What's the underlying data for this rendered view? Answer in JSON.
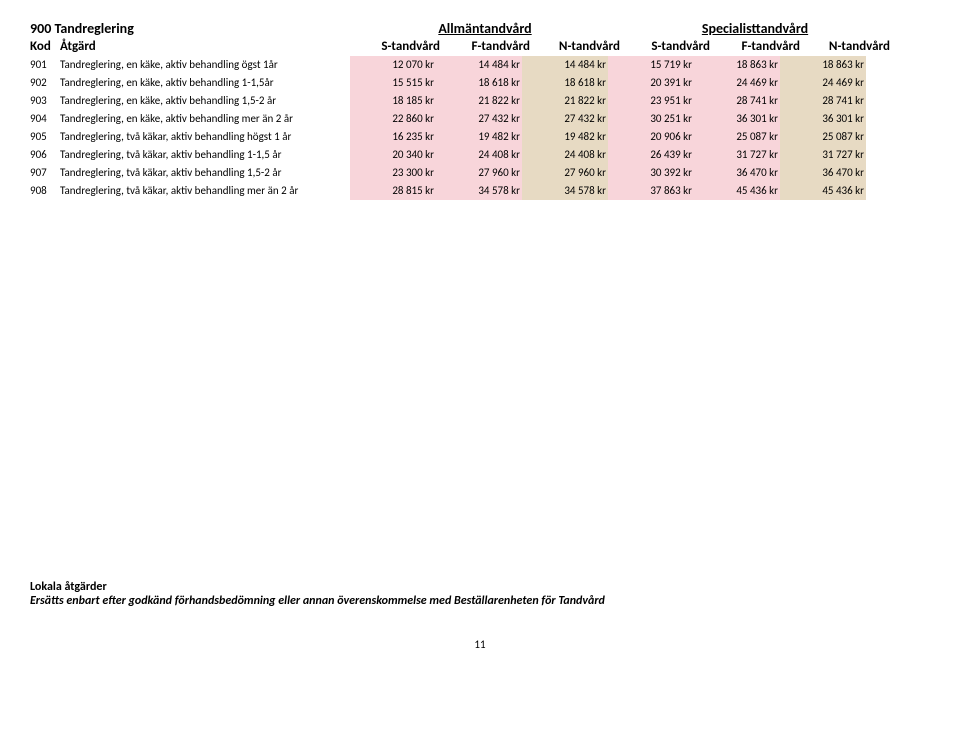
{
  "header": {
    "category_code": "900",
    "category_name": "Tandreglering",
    "group1": "Allmäntandvård",
    "group2": "Specialisttandvård",
    "kod_label": "Kod",
    "atgard_label": "Åtgärd",
    "cols": [
      "S-tandvård",
      "F-tandvård",
      "N-tandvård",
      "S-tandvård",
      "F-tandvård",
      "N-tandvård"
    ]
  },
  "rows": [
    {
      "kod": "901",
      "atgard": "Tandreglering, en käke, aktiv behandling ögst 1år",
      "v": [
        "12 070 kr",
        "14 484 kr",
        "14 484 kr",
        "15 719 kr",
        "18 863 kr",
        "18 863 kr"
      ]
    },
    {
      "kod": "902",
      "atgard": "Tandreglering, en käke, aktiv behandling 1-1,5år",
      "v": [
        "15 515 kr",
        "18 618 kr",
        "18 618 kr",
        "20 391 kr",
        "24 469 kr",
        "24 469 kr"
      ]
    },
    {
      "kod": "903",
      "atgard": "Tandreglering, en käke, aktiv behandling 1,5-2 år",
      "v": [
        "18 185 kr",
        "21 822 kr",
        "21 822 kr",
        "23 951 kr",
        "28 741 kr",
        "28 741 kr"
      ]
    },
    {
      "kod": "904",
      "atgard": "Tandreglering, en käke, aktiv behandling mer än 2 år",
      "v": [
        "22 860 kr",
        "27 432 kr",
        "27 432 kr",
        "30 251 kr",
        "36 301 kr",
        "36 301 kr"
      ]
    },
    {
      "kod": "905",
      "atgard": "Tandreglering, två käkar, aktiv  behandling högst 1 år",
      "v": [
        "16 235 kr",
        "19 482 kr",
        "19 482 kr",
        "20 906 kr",
        "25 087 kr",
        "25 087 kr"
      ]
    },
    {
      "kod": "906",
      "atgard": "Tandreglering, två käkar, aktiv behandling 1-1,5 år",
      "v": [
        "20 340 kr",
        "24 408 kr",
        "24 408 kr",
        "26 439 kr",
        "31 727 kr",
        "31 727 kr"
      ]
    },
    {
      "kod": "907",
      "atgard": "Tandreglering, två käkar, aktiv behandling 1,5-2 år",
      "v": [
        "23 300 kr",
        "27 960 kr",
        "27 960 kr",
        "30 392 kr",
        "36 470 kr",
        "36 470 kr"
      ]
    },
    {
      "kod": "908",
      "atgard": "Tandreglering, två käkar, aktiv behandling mer än 2 år",
      "v": [
        "28 815 kr",
        "34 578 kr",
        "34 578 kr",
        "37 863 kr",
        "45 436 kr",
        "45 436 kr"
      ]
    }
  ],
  "col_classes": [
    "pink",
    "pink",
    "tan",
    "pink",
    "pink",
    "tan"
  ],
  "footer": {
    "line1": "Lokala åtgärder",
    "line2": "Ersätts enbart efter godkänd förhandsbedömning eller annan överenskommelse med Beställarenheten för Tandvård"
  },
  "page_number": "11"
}
